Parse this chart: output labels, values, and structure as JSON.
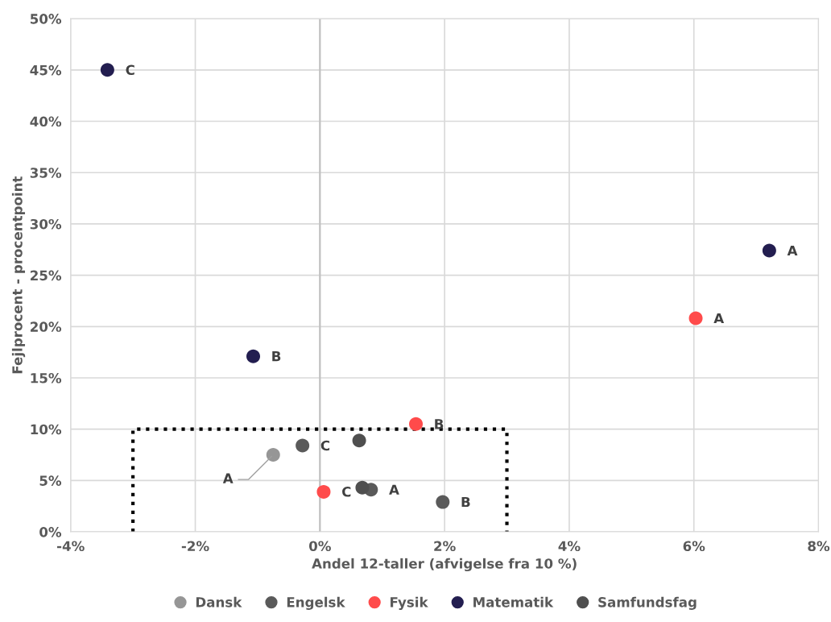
{
  "chart_data": {
    "type": "scatter",
    "xlabel": "Andel 12-taller (afvigelse fra 10 %)",
    "ylabel": "Fejlprocent - procentpoint",
    "xlim": [
      -4,
      8
    ],
    "xticks": [
      {
        "value": -4,
        "label": "-4%"
      },
      {
        "value": -2,
        "label": "-2%"
      },
      {
        "value": 0,
        "label": "0%"
      },
      {
        "value": 2,
        "label": "2%"
      },
      {
        "value": 4,
        "label": "4%"
      },
      {
        "value": 6,
        "label": "6%"
      },
      {
        "value": 8,
        "label": "8%"
      }
    ],
    "ylim": [
      0,
      50
    ],
    "yticks": [
      {
        "value": 0,
        "label": "0%"
      },
      {
        "value": 5,
        "label": "5%"
      },
      {
        "value": 10,
        "label": "10%"
      },
      {
        "value": 15,
        "label": "15%"
      },
      {
        "value": 20,
        "label": "20%"
      },
      {
        "value": 25,
        "label": "25%"
      },
      {
        "value": 30,
        "label": "30%"
      },
      {
        "value": 35,
        "label": "35%"
      },
      {
        "value": 40,
        "label": "40%"
      },
      {
        "value": 45,
        "label": "45%"
      },
      {
        "value": 50,
        "label": "50%"
      }
    ],
    "grid": true,
    "legend": "bottom",
    "marker": "circle",
    "series": [
      {
        "name": "Dansk",
        "color": "#969696",
        "x": [
          -0.75
        ],
        "values": [
          7.5
        ],
        "value_labels": [
          "A"
        ]
      },
      {
        "name": "Engelsk",
        "color": "#5a5a5a",
        "x": [
          -0.28,
          0.82,
          1.97
        ],
        "values": [
          8.4,
          4.1,
          2.9
        ],
        "value_labels": [
          "C",
          "A",
          "B"
        ]
      },
      {
        "name": "Fysik",
        "color": "#ff4b4b",
        "x": [
          6.03,
          1.54,
          0.06
        ],
        "values": [
          20.8,
          10.5,
          3.9
        ],
        "value_labels": [
          "A",
          "B",
          "C"
        ]
      },
      {
        "name": "Matematik",
        "color": "#231e50",
        "x": [
          7.21,
          -1.07,
          -3.41
        ],
        "values": [
          27.4,
          17.1,
          45.0
        ],
        "value_labels": [
          "A",
          "B",
          "C"
        ]
      },
      {
        "name": "Samfundsfag",
        "color": "#4f4f4f",
        "x": [
          0.63,
          0.68
        ],
        "values": [
          8.9,
          4.3
        ],
        "value_labels": [
          null,
          null
        ]
      },
      {
        "type": "line",
        "color": "#000000",
        "line_style": "dotted",
        "marker": "none",
        "x": [
          -3,
          -3,
          3,
          3
        ],
        "values": [
          0,
          10,
          10,
          0
        ]
      }
    ]
  }
}
